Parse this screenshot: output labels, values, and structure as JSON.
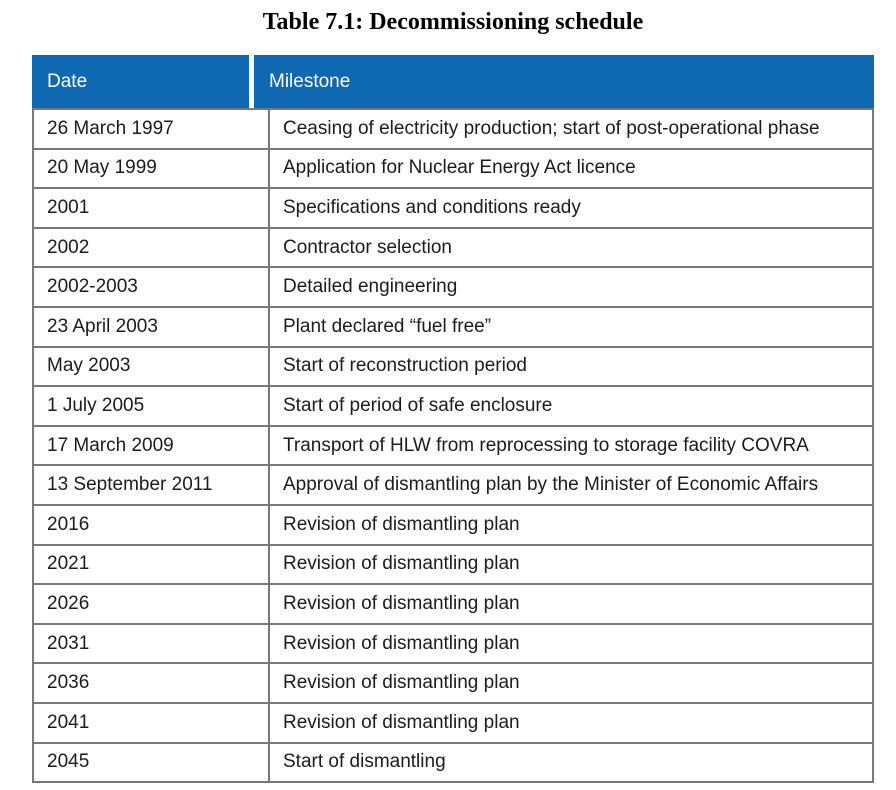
{
  "title": "Table 7.1: Decommissioning schedule",
  "table": {
    "columns": [
      "Date",
      "Milestone"
    ],
    "rows": [
      {
        "date": "26 March 1997",
        "milestone": "Ceasing of electricity production; start of post-operational phase"
      },
      {
        "date": "20 May 1999",
        "milestone": "Application for Nuclear Energy Act licence"
      },
      {
        "date": "2001",
        "milestone": "Specifications and conditions ready"
      },
      {
        "date": "2002",
        "milestone": "Contractor selection"
      },
      {
        "date": "2002-2003",
        "milestone": "Detailed engineering"
      },
      {
        "date": "23 April 2003",
        "milestone": "Plant declared “fuel free”"
      },
      {
        "date": "May 2003",
        "milestone": "Start of reconstruction period"
      },
      {
        "date": "1 July 2005",
        "milestone": "Start of period of safe enclosure"
      },
      {
        "date": "17 March 2009",
        "milestone": "Transport of HLW from reprocessing to storage facility COVRA"
      },
      {
        "date": "13 September 2011",
        "milestone": "Approval of dismantling plan by the Minister of Economic Affairs"
      },
      {
        "date": "2016",
        "milestone": "Revision of dismantling plan"
      },
      {
        "date": "2021",
        "milestone": "Revision of dismantling plan"
      },
      {
        "date": "2026",
        "milestone": "Revision of dismantling plan"
      },
      {
        "date": "2031",
        "milestone": "Revision of dismantling plan"
      },
      {
        "date": "2036",
        "milestone": "Revision of dismantling plan"
      },
      {
        "date": "2041",
        "milestone": "Revision of dismantling plan"
      },
      {
        "date": "2045",
        "milestone": "Start of dismantling"
      }
    ]
  },
  "colors": {
    "header_bg": "#0e68b2",
    "header_text": "#ffffff",
    "border": "#787878",
    "body_text": "#1c1c1c",
    "page_bg": "#ffffff"
  }
}
